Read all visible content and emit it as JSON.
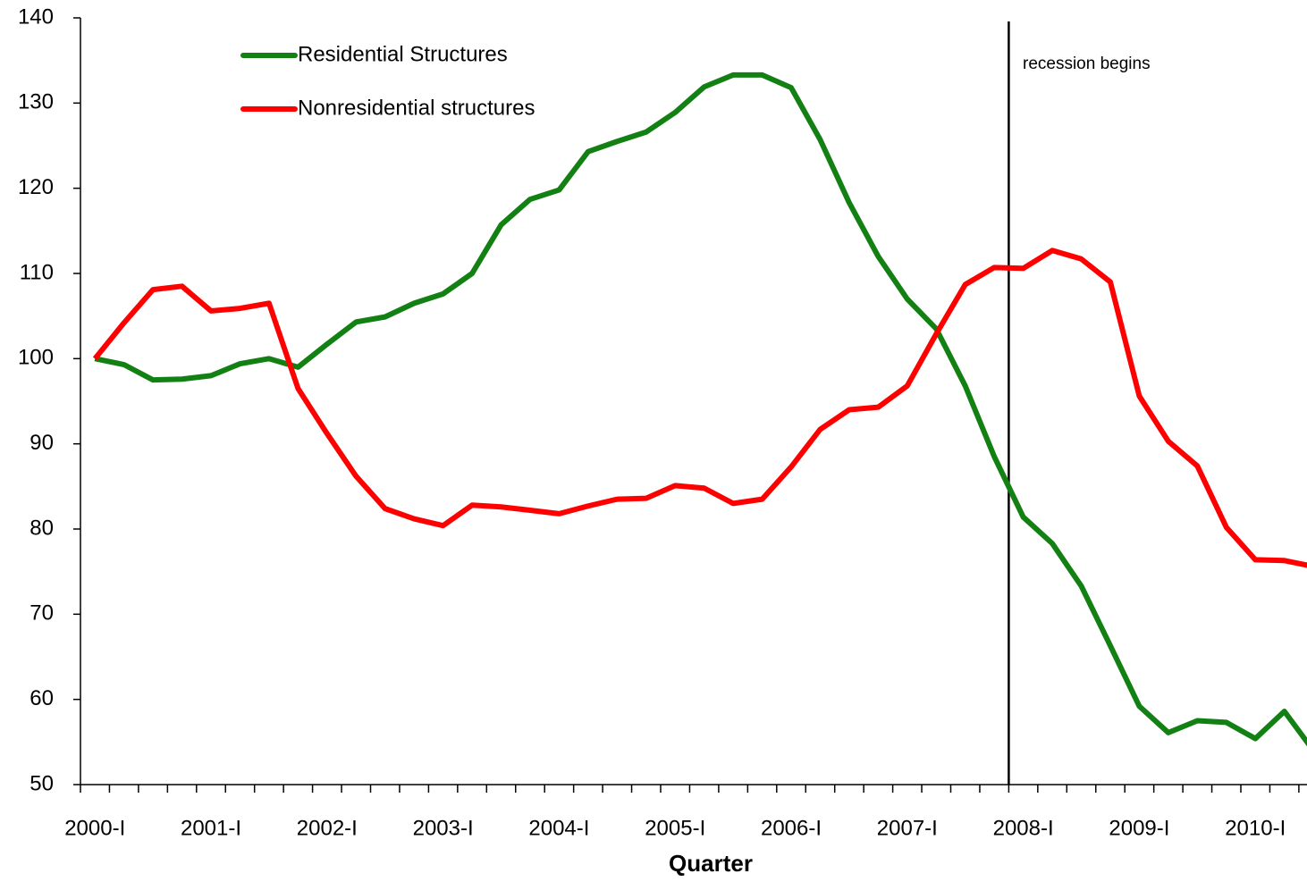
{
  "chart_data": {
    "type": "line",
    "x_label": "Quarter",
    "annotation": "recession begins",
    "categories": [
      "2000-I",
      null,
      null,
      null,
      "2001-I",
      null,
      null,
      null,
      "2002-I",
      null,
      null,
      null,
      "2003-I",
      null,
      null,
      null,
      "2004-I",
      null,
      null,
      null,
      "2005-I",
      null,
      null,
      null,
      "2006-I",
      null,
      null,
      null,
      "2007-I",
      null,
      null,
      null,
      "2008-I",
      null,
      null,
      null,
      "2009-I",
      null,
      null,
      null,
      "2010-I",
      null,
      null
    ],
    "series": [
      {
        "name": "Residential Structures",
        "color": "#128012",
        "values": [
          100,
          99.3,
          97.5,
          97.6,
          98.0,
          99.4,
          100.0,
          99.0,
          101.7,
          104.3,
          104.9,
          106.5,
          107.6,
          110.0,
          115.7,
          118.7,
          119.8,
          124.3,
          125.5,
          126.6,
          128.9,
          131.9,
          133.3,
          133.3,
          131.8,
          125.7,
          118.3,
          112.0,
          107.0,
          103.5,
          96.8,
          88.5,
          81.4,
          78.3,
          73.3,
          66.3,
          59.2,
          56.1,
          57.5,
          57.3,
          55.4,
          58.6,
          54.0
        ]
      },
      {
        "name": "Nonresidential structures",
        "color": "#ff0000",
        "values": [
          100,
          104.2,
          108.1,
          108.5,
          105.6,
          105.9,
          106.5,
          96.5,
          91.2,
          86.2,
          82.4,
          81.2,
          80.4,
          82.8,
          82.6,
          82.2,
          81.8,
          82.7,
          83.5,
          83.6,
          85.1,
          84.8,
          83.0,
          83.5,
          87.3,
          91.7,
          94.0,
          94.3,
          96.8,
          102.9,
          108.7,
          110.7,
          110.6,
          112.7,
          111.7,
          109.0,
          95.6,
          90.3,
          87.4,
          80.2,
          76.4,
          76.3,
          75.6
        ]
      }
    ],
    "ylim": [
      50,
      140
    ],
    "yticks": [
      50,
      60,
      70,
      80,
      90,
      100,
      110,
      120,
      130,
      140
    ],
    "grid": false
  }
}
